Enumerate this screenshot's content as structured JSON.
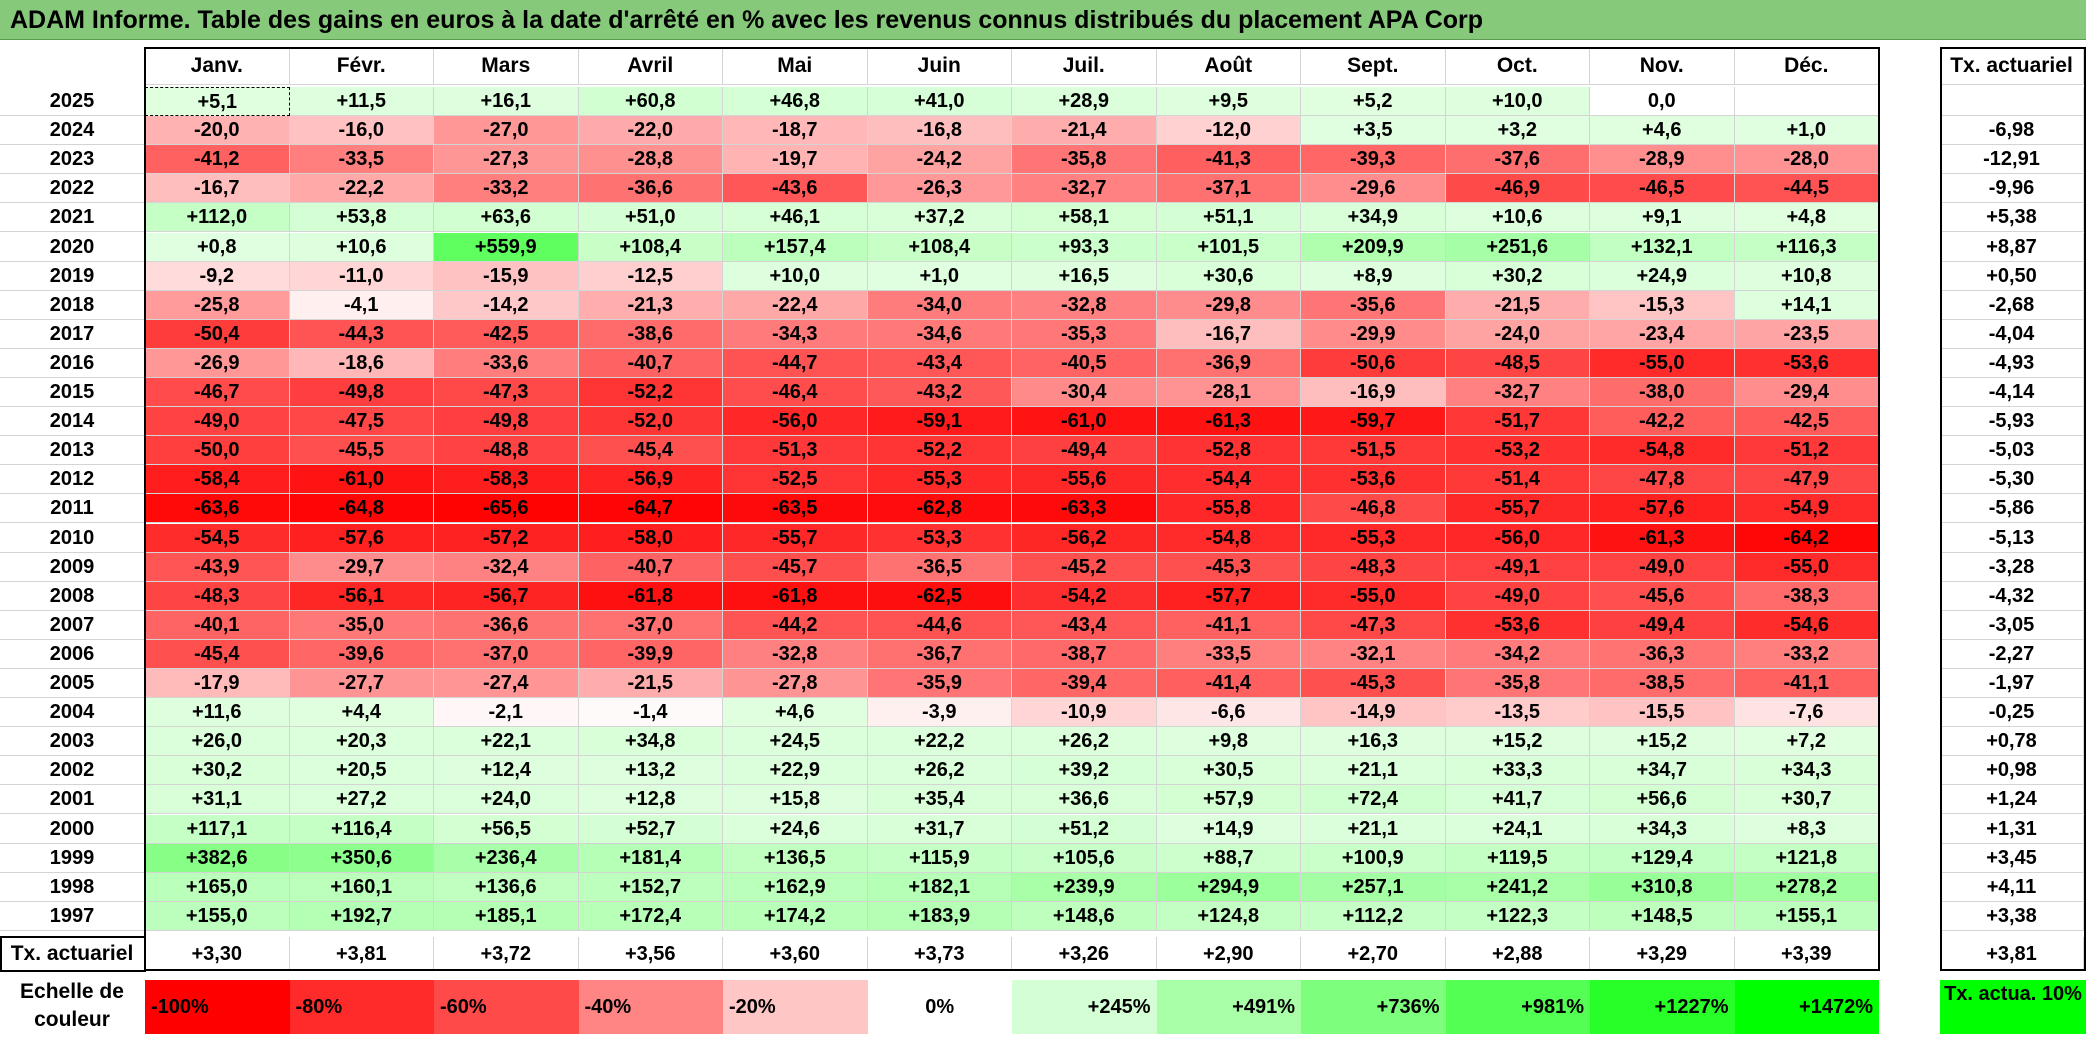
{
  "title": "ADAM Informe. Table des gains en euros à la date d'arrêté en % avec les revenus connus distribués du placement APA Corp",
  "chart_data": {
    "type": "heatmap",
    "title": "ADAM Informe. Table des gains en euros à la date d'arrêté en % avec les revenus connus distribués du placement APA Corp",
    "columns": [
      "Janv.",
      "Févr.",
      "Mars",
      "Avril",
      "Mai",
      "Juin",
      "Juil.",
      "Août",
      "Sept.",
      "Oct.",
      "Nov.",
      "Déc."
    ],
    "rate_header": "Tx. actuariel",
    "rows": [
      {
        "year": "2025",
        "values": [
          "+5,1",
          "+11,5",
          "+16,1",
          "+60,8",
          "+46,8",
          "+41,0",
          "+28,9",
          "+9,5",
          "+5,2",
          "+10,0",
          "0,0",
          ""
        ],
        "rate": ""
      },
      {
        "year": "2024",
        "values": [
          "-20,0",
          "-16,0",
          "-27,0",
          "-22,0",
          "-18,7",
          "-16,8",
          "-21,4",
          "-12,0",
          "+3,5",
          "+3,2",
          "+4,6",
          "+1,0"
        ],
        "rate": "-6,98"
      },
      {
        "year": "2023",
        "values": [
          "-41,2",
          "-33,5",
          "-27,3",
          "-28,8",
          "-19,7",
          "-24,2",
          "-35,8",
          "-41,3",
          "-39,3",
          "-37,6",
          "-28,9",
          "-28,0"
        ],
        "rate": "-12,91"
      },
      {
        "year": "2022",
        "values": [
          "-16,7",
          "-22,2",
          "-33,2",
          "-36,6",
          "-43,6",
          "-26,3",
          "-32,7",
          "-37,1",
          "-29,6",
          "-46,9",
          "-46,5",
          "-44,5"
        ],
        "rate": "-9,96"
      },
      {
        "year": "2021",
        "values": [
          "+112,0",
          "+53,8",
          "+63,6",
          "+51,0",
          "+46,1",
          "+37,2",
          "+58,1",
          "+51,1",
          "+34,9",
          "+10,6",
          "+9,1",
          "+4,8"
        ],
        "rate": "+5,38"
      },
      {
        "year": "2020",
        "values": [
          "+0,8",
          "+10,6",
          "+559,9",
          "+108,4",
          "+157,4",
          "+108,4",
          "+93,3",
          "+101,5",
          "+209,9",
          "+251,6",
          "+132,1",
          "+116,3"
        ],
        "rate": "+8,87"
      },
      {
        "year": "2019",
        "values": [
          "-9,2",
          "-11,0",
          "-15,9",
          "-12,5",
          "+10,0",
          "+1,0",
          "+16,5",
          "+30,6",
          "+8,9",
          "+30,2",
          "+24,9",
          "+10,8"
        ],
        "rate": "+0,50"
      },
      {
        "year": "2018",
        "values": [
          "-25,8",
          "-4,1",
          "-14,2",
          "-21,3",
          "-22,4",
          "-34,0",
          "-32,8",
          "-29,8",
          "-35,6",
          "-21,5",
          "-15,3",
          "+14,1"
        ],
        "rate": "-2,68"
      },
      {
        "year": "2017",
        "values": [
          "-50,4",
          "-44,3",
          "-42,5",
          "-38,6",
          "-34,3",
          "-34,6",
          "-35,3",
          "-16,7",
          "-29,9",
          "-24,0",
          "-23,4",
          "-23,5"
        ],
        "rate": "-4,04"
      },
      {
        "year": "2016",
        "values": [
          "-26,9",
          "-18,6",
          "-33,6",
          "-40,7",
          "-44,7",
          "-43,4",
          "-40,5",
          "-36,9",
          "-50,6",
          "-48,5",
          "-55,0",
          "-53,6"
        ],
        "rate": "-4,93"
      },
      {
        "year": "2015",
        "values": [
          "-46,7",
          "-49,8",
          "-47,3",
          "-52,2",
          "-46,4",
          "-43,2",
          "-30,4",
          "-28,1",
          "-16,9",
          "-32,7",
          "-38,0",
          "-29,4"
        ],
        "rate": "-4,14"
      },
      {
        "year": "2014",
        "values": [
          "-49,0",
          "-47,5",
          "-49,8",
          "-52,0",
          "-56,0",
          "-59,1",
          "-61,0",
          "-61,3",
          "-59,7",
          "-51,7",
          "-42,2",
          "-42,5"
        ],
        "rate": "-5,93"
      },
      {
        "year": "2013",
        "values": [
          "-50,0",
          "-45,5",
          "-48,8",
          "-45,4",
          "-51,3",
          "-52,2",
          "-49,4",
          "-52,8",
          "-51,5",
          "-53,2",
          "-54,8",
          "-51,2"
        ],
        "rate": "-5,03"
      },
      {
        "year": "2012",
        "values": [
          "-58,4",
          "-61,0",
          "-58,3",
          "-56,9",
          "-52,5",
          "-55,3",
          "-55,6",
          "-54,4",
          "-53,6",
          "-51,4",
          "-47,8",
          "-47,9"
        ],
        "rate": "-5,30"
      },
      {
        "year": "2011",
        "values": [
          "-63,6",
          "-64,8",
          "-65,6",
          "-64,7",
          "-63,5",
          "-62,8",
          "-63,3",
          "-55,8",
          "-46,8",
          "-55,7",
          "-57,6",
          "-54,9"
        ],
        "rate": "-5,86"
      },
      {
        "year": "2010",
        "values": [
          "-54,5",
          "-57,6",
          "-57,2",
          "-58,0",
          "-55,7",
          "-53,3",
          "-56,2",
          "-54,8",
          "-55,3",
          "-56,0",
          "-61,3",
          "-64,2"
        ],
        "rate": "-5,13"
      },
      {
        "year": "2009",
        "values": [
          "-43,9",
          "-29,7",
          "-32,4",
          "-40,7",
          "-45,7",
          "-36,5",
          "-45,2",
          "-45,3",
          "-48,3",
          "-49,1",
          "-49,0",
          "-55,0"
        ],
        "rate": "-3,28"
      },
      {
        "year": "2008",
        "values": [
          "-48,3",
          "-56,1",
          "-56,7",
          "-61,8",
          "-61,8",
          "-62,5",
          "-54,2",
          "-57,7",
          "-55,0",
          "-49,0",
          "-45,6",
          "-38,3"
        ],
        "rate": "-4,32"
      },
      {
        "year": "2007",
        "values": [
          "-40,1",
          "-35,0",
          "-36,6",
          "-37,0",
          "-44,2",
          "-44,6",
          "-43,4",
          "-41,1",
          "-47,3",
          "-53,6",
          "-49,4",
          "-54,6"
        ],
        "rate": "-3,05"
      },
      {
        "year": "2006",
        "values": [
          "-45,4",
          "-39,6",
          "-37,0",
          "-39,9",
          "-32,8",
          "-36,7",
          "-38,7",
          "-33,5",
          "-32,1",
          "-34,2",
          "-36,3",
          "-33,2"
        ],
        "rate": "-2,27"
      },
      {
        "year": "2005",
        "values": [
          "-17,9",
          "-27,7",
          "-27,4",
          "-21,5",
          "-27,8",
          "-35,9",
          "-39,4",
          "-41,4",
          "-45,3",
          "-35,8",
          "-38,5",
          "-41,1"
        ],
        "rate": "-1,97"
      },
      {
        "year": "2004",
        "values": [
          "+11,6",
          "+4,4",
          "-2,1",
          "-1,4",
          "+4,6",
          "-3,9",
          "-10,9",
          "-6,6",
          "-14,9",
          "-13,5",
          "-15,5",
          "-7,6"
        ],
        "rate": "-0,25"
      },
      {
        "year": "2003",
        "values": [
          "+26,0",
          "+20,3",
          "+22,1",
          "+34,8",
          "+24,5",
          "+22,2",
          "+26,2",
          "+9,8",
          "+16,3",
          "+15,2",
          "+15,2",
          "+7,2"
        ],
        "rate": "+0,78"
      },
      {
        "year": "2002",
        "values": [
          "+30,2",
          "+20,5",
          "+12,4",
          "+13,2",
          "+22,9",
          "+26,2",
          "+39,2",
          "+30,5",
          "+21,1",
          "+33,3",
          "+34,7",
          "+34,3"
        ],
        "rate": "+0,98"
      },
      {
        "year": "2001",
        "values": [
          "+31,1",
          "+27,2",
          "+24,0",
          "+12,8",
          "+15,8",
          "+35,4",
          "+36,6",
          "+57,9",
          "+72,4",
          "+41,7",
          "+56,6",
          "+30,7"
        ],
        "rate": "+1,24"
      },
      {
        "year": "2000",
        "values": [
          "+117,1",
          "+116,4",
          "+56,5",
          "+52,7",
          "+24,6",
          "+31,7",
          "+51,2",
          "+14,9",
          "+21,1",
          "+24,1",
          "+34,3",
          "+8,3"
        ],
        "rate": "+1,31"
      },
      {
        "year": "1999",
        "values": [
          "+382,6",
          "+350,6",
          "+236,4",
          "+181,4",
          "+136,5",
          "+115,9",
          "+105,6",
          "+88,7",
          "+100,9",
          "+119,5",
          "+129,4",
          "+121,8"
        ],
        "rate": "+3,45"
      },
      {
        "year": "1998",
        "values": [
          "+165,0",
          "+160,1",
          "+136,6",
          "+152,7",
          "+162,9",
          "+182,1",
          "+239,9",
          "+294,9",
          "+257,1",
          "+241,2",
          "+310,8",
          "+278,2"
        ],
        "rate": "+4,11"
      },
      {
        "year": "1997",
        "values": [
          "+155,0",
          "+192,7",
          "+185,1",
          "+172,4",
          "+174,2",
          "+183,9",
          "+148,6",
          "+124,8",
          "+112,2",
          "+122,3",
          "+148,5",
          "+155,1"
        ],
        "rate": "+3,38"
      }
    ],
    "summary_label": "Tx. actuariel",
    "summary_values": [
      "+3,30",
      "+3,81",
      "+3,72",
      "+3,56",
      "+3,60",
      "+3,73",
      "+3,26",
      "+2,90",
      "+2,70",
      "+2,88",
      "+3,29",
      "+3,39"
    ],
    "summary_rate": "+3,81",
    "scale_label": "Echelle de couleur",
    "scale": [
      {
        "label": "-100%",
        "color": "#ff0000"
      },
      {
        "label": "-80%",
        "color": "#ff2a2a"
      },
      {
        "label": "-60%",
        "color": "#ff4a4a"
      },
      {
        "label": "-40%",
        "color": "#ff8585"
      },
      {
        "label": "-20%",
        "color": "#ffc6c6"
      },
      {
        "label": "0%",
        "color": "#ffffff"
      },
      {
        "label": "+245%",
        "color": "#d4ffd4"
      },
      {
        "label": "+491%",
        "color": "#a8ffa8"
      },
      {
        "label": "+736%",
        "color": "#7dff7d"
      },
      {
        "label": "+981%",
        "color": "#52ff52"
      },
      {
        "label": "+1227%",
        "color": "#28ff28"
      },
      {
        "label": "+1472%",
        "color": "#00ff00"
      }
    ],
    "rate_legend": {
      "label": "Tx. actua. 10%",
      "color": "#00ff00"
    }
  }
}
